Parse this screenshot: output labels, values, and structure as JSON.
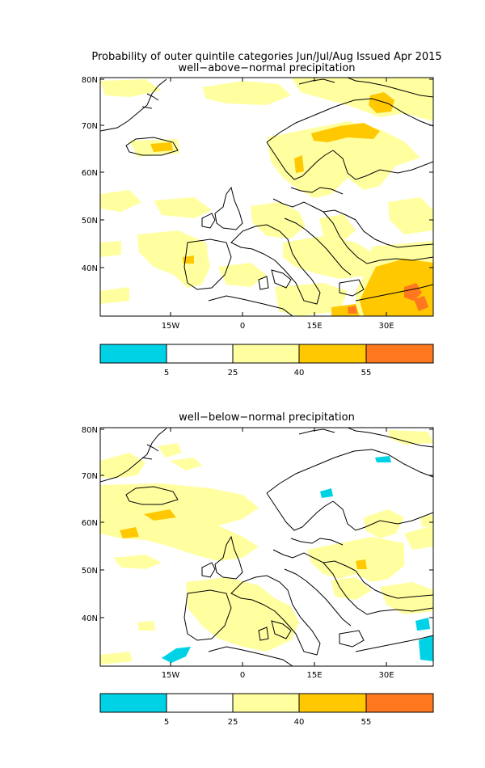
{
  "main_title": "Probability of outer quintile categories Jun/Jul/Aug Issued Apr 2015",
  "lat_labels": [
    "80N",
    "70N",
    "60N",
    "50N",
    "40N"
  ],
  "lon_labels": [
    "15W",
    "0",
    "15E",
    "30E"
  ],
  "colors": {
    "cyan": "#00d2e6",
    "white": "#ffffff",
    "light_yellow": "#ffffa0",
    "gold": "#ffc800",
    "orange": "#ff7820",
    "coast": "#000000"
  },
  "colorbar": {
    "bins": [
      "cyan",
      "white",
      "light_yellow",
      "gold",
      "orange"
    ],
    "tick_labels": [
      "5",
      "25",
      "40",
      "55"
    ]
  },
  "panels": [
    {
      "subtitle": "well−above−normal precipitation"
    },
    {
      "subtitle": "well−below−normal precipitation"
    }
  ]
}
